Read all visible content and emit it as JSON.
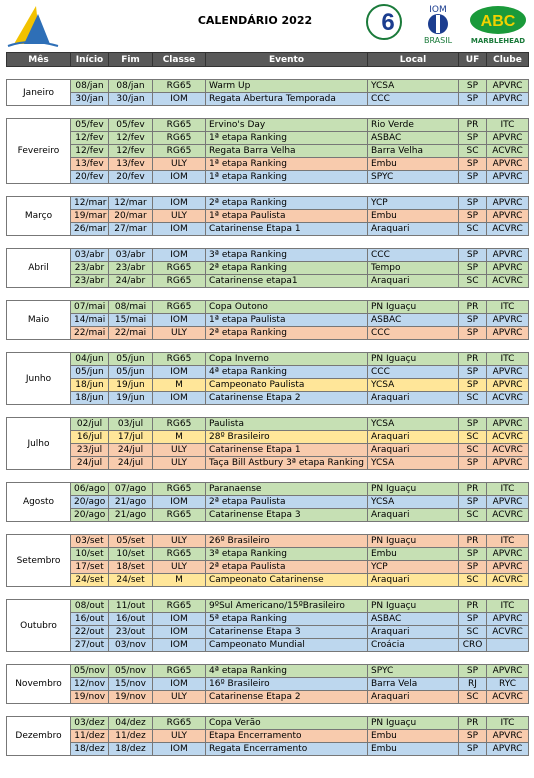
{
  "header": {
    "title": "CALENDÁRIO 2022",
    "logos": {
      "iom_top": "IOM",
      "iom_bottom": "BRASIL",
      "abc_top": "ABC",
      "abc_bottom": "MARBLEHEAD"
    }
  },
  "columns": [
    "Mês",
    "Início",
    "Fim",
    "Classe",
    "Evento",
    "Local",
    "UF",
    "Clube"
  ],
  "class_colors": {
    "RG65": "#c6e0b4",
    "IOM": "#bdd7ee",
    "ULY": "#f8cbad",
    "M": "#ffe699"
  },
  "months": [
    {
      "name": "Janeiro",
      "rows": [
        {
          "inicio": "08/jan",
          "fim": "08/jan",
          "classe": "RG65",
          "evento": "Warm Up",
          "local": "YCSA",
          "uf": "SP",
          "clube": "APVRC"
        },
        {
          "inicio": "30/jan",
          "fim": "30/jan",
          "classe": "IOM",
          "evento": "Regata Abertura Temporada",
          "local": "CCC",
          "uf": "SP",
          "clube": "APVRC"
        }
      ]
    },
    {
      "name": "Fevereiro",
      "rows": [
        {
          "inicio": "05/fev",
          "fim": "05/fev",
          "classe": "RG65",
          "evento": "Ervino's Day",
          "local": "Rio Verde",
          "uf": "PR",
          "clube": "ITC"
        },
        {
          "inicio": "12/fev",
          "fim": "12/fev",
          "classe": "RG65",
          "evento": "1ª etapa Ranking",
          "local": "ASBAC",
          "uf": "SP",
          "clube": "APVRC"
        },
        {
          "inicio": "12/fev",
          "fim": "12/fev",
          "classe": "RG65",
          "evento": "Regata Barra Velha",
          "local": "Barra Velha",
          "uf": "SC",
          "clube": "ACVRC"
        },
        {
          "inicio": "13/fev",
          "fim": "13/fev",
          "classe": "ULY",
          "evento": "1ª etapa Ranking",
          "local": "Embu",
          "uf": "SP",
          "clube": "APVRC"
        },
        {
          "inicio": "20/fev",
          "fim": "20/fev",
          "classe": "IOM",
          "evento": "1ª etapa Ranking",
          "local": "SPYC",
          "uf": "SP",
          "clube": "APVRC"
        }
      ]
    },
    {
      "name": "Março",
      "rows": [
        {
          "inicio": "12/mar",
          "fim": "12/mar",
          "classe": "IOM",
          "evento": "2ª etapa Ranking",
          "local": "YCP",
          "uf": "SP",
          "clube": "APVRC"
        },
        {
          "inicio": "19/mar",
          "fim": "20/mar",
          "classe": "ULY",
          "evento": "1ª etapa Paulista",
          "local": "Embu",
          "uf": "SP",
          "clube": "APVRC"
        },
        {
          "inicio": "26/mar",
          "fim": "27/mar",
          "classe": "IOM",
          "evento": "Catarinense Etapa 1",
          "local": "Araquari",
          "uf": "SC",
          "clube": "ACVRC"
        }
      ]
    },
    {
      "name": "Abril",
      "rows": [
        {
          "inicio": "03/abr",
          "fim": "03/abr",
          "classe": "IOM",
          "evento": "3ª etapa Ranking",
          "local": "CCC",
          "uf": "SP",
          "clube": "APVRC"
        },
        {
          "inicio": "23/abr",
          "fim": "23/abr",
          "classe": "RG65",
          "evento": "2ª etapa Ranking",
          "local": "Tempo",
          "uf": "SP",
          "clube": "APVRC"
        },
        {
          "inicio": "23/abr",
          "fim": "24/abr",
          "classe": "RG65",
          "evento": "Catarinense etapa1",
          "local": "Araquari",
          "uf": "SC",
          "clube": "ACVRC"
        }
      ]
    },
    {
      "name": "Maio",
      "rows": [
        {
          "inicio": "07/mai",
          "fim": "08/mai",
          "classe": "RG65",
          "evento": "Copa Outono",
          "local": "PN Iguaçu",
          "uf": "PR",
          "clube": "ITC"
        },
        {
          "inicio": "14/mai",
          "fim": "15/mai",
          "classe": "IOM",
          "evento": "1ª etapa Paulista",
          "local": "ASBAC",
          "uf": "SP",
          "clube": "APVRC"
        },
        {
          "inicio": "22/mai",
          "fim": "22/mai",
          "classe": "ULY",
          "evento": "2ª etapa Ranking",
          "local": "CCC",
          "uf": "SP",
          "clube": "APVRC"
        }
      ]
    },
    {
      "name": "Junho",
      "rows": [
        {
          "inicio": "04/jun",
          "fim": "05/jun",
          "classe": "RG65",
          "evento": "Copa Inverno",
          "local": "PN Iguaçu",
          "uf": "PR",
          "clube": "ITC"
        },
        {
          "inicio": "05/jun",
          "fim": "05/jun",
          "classe": "IOM",
          "evento": "4ª etapa Ranking",
          "local": "CCC",
          "uf": "SP",
          "clube": "APVRC"
        },
        {
          "inicio": "18/jun",
          "fim": "19/jun",
          "classe": "M",
          "evento": "Campeonato Paulista",
          "local": "YCSA",
          "uf": "SP",
          "clube": "APVRC"
        },
        {
          "inicio": "18/jun",
          "fim": "19/jun",
          "classe": "IOM",
          "evento": "Catarinense Etapa 2",
          "local": "Araquari",
          "uf": "SC",
          "clube": "ACVRC"
        }
      ]
    },
    {
      "name": "Julho",
      "rows": [
        {
          "inicio": "02/jul",
          "fim": "03/jul",
          "classe": "RG65",
          "evento": "Paulista",
          "local": "YCSA",
          "uf": "SP",
          "clube": "APVRC"
        },
        {
          "inicio": "16/jul",
          "fim": "17/jul",
          "classe": "M",
          "evento": "28º Brasileiro",
          "local": "Araquari",
          "uf": "SC",
          "clube": "ACVRC"
        },
        {
          "inicio": "23/jul",
          "fim": "24/jul",
          "classe": "ULY",
          "evento": "Catarinense Etapa 1",
          "local": "Araquari",
          "uf": "SC",
          "clube": "ACVRC"
        },
        {
          "inicio": "24/jul",
          "fim": "24/jul",
          "classe": "ULY",
          "evento": "Taça Bill Astbury 3ª etapa Ranking",
          "local": "YCSA",
          "uf": "SP",
          "clube": "APVRC"
        }
      ]
    },
    {
      "name": "Agosto",
      "rows": [
        {
          "inicio": "06/ago",
          "fim": "07/ago",
          "classe": "RG65",
          "evento": "Paranaense",
          "local": "PN Iguaçu",
          "uf": "PR",
          "clube": "ITC"
        },
        {
          "inicio": "20/ago",
          "fim": "21/ago",
          "classe": "IOM",
          "evento": "2ª etapa Paulista",
          "local": "YCSA",
          "uf": "SP",
          "clube": "APVRC"
        },
        {
          "inicio": "20/ago",
          "fim": "21/ago",
          "classe": "RG65",
          "evento": "Catarinense Etapa 3",
          "local": "Araquari",
          "uf": "SC",
          "clube": "ACVRC"
        }
      ]
    },
    {
      "name": "Setembro",
      "rows": [
        {
          "inicio": "03/set",
          "fim": "05/set",
          "classe": "ULY",
          "evento": "26º Brasileiro",
          "local": "PN Iguaçu",
          "uf": "PR",
          "clube": "ITC"
        },
        {
          "inicio": "10/set",
          "fim": "10/set",
          "classe": "RG65",
          "evento": "3ª etapa Ranking",
          "local": "Embu",
          "uf": "SP",
          "clube": "APVRC"
        },
        {
          "inicio": "17/set",
          "fim": "18/set",
          "classe": "ULY",
          "evento": "2ª etapa Paulista",
          "local": "YCP",
          "uf": "SP",
          "clube": "APVRC"
        },
        {
          "inicio": "24/set",
          "fim": "24/set",
          "classe": "M",
          "evento": "Campeonato Catarinense",
          "local": "Araquari",
          "uf": "SC",
          "clube": "ACVRC"
        }
      ]
    },
    {
      "name": "Outubro",
      "rows": [
        {
          "inicio": "08/out",
          "fim": "11/out",
          "classe": "RG65",
          "evento": "9ºSul Americano/15ºBrasileiro",
          "local": "PN Iguaçu",
          "uf": "PR",
          "clube": "ITC"
        },
        {
          "inicio": "16/out",
          "fim": "16/out",
          "classe": "IOM",
          "evento": "5ª etapa Ranking",
          "local": "ASBAC",
          "uf": "SP",
          "clube": "APVRC"
        },
        {
          "inicio": "22/out",
          "fim": "23/out",
          "classe": "IOM",
          "evento": "Catarinense Etapa 3",
          "local": "Araquari",
          "uf": "SC",
          "clube": "ACVRC"
        },
        {
          "inicio": "27/out",
          "fim": "03/nov",
          "classe": "IOM",
          "evento": "Campeonato Mundial",
          "local": "Croácia",
          "uf": "CRO",
          "clube": null
        }
      ]
    },
    {
      "name": "Novembro",
      "rows": [
        {
          "inicio": "05/nov",
          "fim": "05/nov",
          "classe": "RG65",
          "evento": "4ª etapa Ranking",
          "local": "SPYC",
          "uf": "SP",
          "clube": "APVRC"
        },
        {
          "inicio": "12/nov",
          "fim": "15/nov",
          "classe": "IOM",
          "evento": "16º Brasileiro",
          "local": "Barra Vela",
          "uf": "RJ",
          "clube": "RYC"
        },
        {
          "inicio": "19/nov",
          "fim": "19/nov",
          "classe": "ULY",
          "evento": "Catarinense Etapa 2",
          "local": "Araquari",
          "uf": "SC",
          "clube": "ACVRC"
        }
      ]
    },
    {
      "name": "Dezembro",
      "rows": [
        {
          "inicio": "03/dez",
          "fim": "04/dez",
          "classe": "RG65",
          "evento": "Copa Verão",
          "local": "PN Iguaçu",
          "uf": "PR",
          "clube": "ITC"
        },
        {
          "inicio": "11/dez",
          "fim": "11/dez",
          "classe": "ULY",
          "evento": "Etapa Encerramento",
          "local": "Embu",
          "uf": "SP",
          "clube": "APVRC"
        },
        {
          "inicio": "18/dez",
          "fim": "18/dez",
          "classe": "IOM",
          "evento": "Regata Encerramento",
          "local": "Embu",
          "uf": "SP",
          "clube": "APVRC"
        }
      ]
    }
  ]
}
